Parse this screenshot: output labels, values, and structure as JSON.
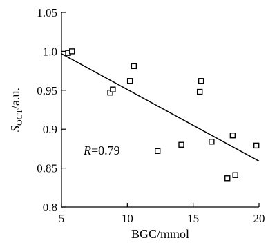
{
  "chart_data": {
    "type": "scatter",
    "xlabel": "BGC/mmol",
    "ylabel": {
      "main": "S",
      "subscript": "OCT",
      "suffix": "/a.u."
    },
    "xlim": [
      5,
      20
    ],
    "ylim": [
      0.8,
      1.05
    ],
    "x_ticks": [
      5,
      10,
      15,
      20
    ],
    "x_tick_labels": [
      "5",
      "10",
      "15",
      "20"
    ],
    "y_ticks": [
      0.8,
      0.85,
      0.9,
      0.95,
      1.0,
      1.05
    ],
    "y_tick_labels": [
      "0.8",
      "0.85",
      "0.9",
      "0.95",
      "1.0",
      "1.05"
    ],
    "grid": false,
    "marker": "open-square",
    "points": [
      {
        "x": 5.5,
        "y": 0.998
      },
      {
        "x": 5.8,
        "y": 1.0
      },
      {
        "x": 8.7,
        "y": 0.947
      },
      {
        "x": 8.9,
        "y": 0.951
      },
      {
        "x": 10.2,
        "y": 0.962
      },
      {
        "x": 10.5,
        "y": 0.981
      },
      {
        "x": 12.3,
        "y": 0.872
      },
      {
        "x": 14.1,
        "y": 0.88
      },
      {
        "x": 15.5,
        "y": 0.948
      },
      {
        "x": 15.6,
        "y": 0.962
      },
      {
        "x": 16.4,
        "y": 0.884
      },
      {
        "x": 17.6,
        "y": 0.837
      },
      {
        "x": 18.0,
        "y": 0.892
      },
      {
        "x": 18.2,
        "y": 0.841
      },
      {
        "x": 19.8,
        "y": 0.879
      }
    ],
    "fit_line": {
      "x": [
        5,
        20
      ],
      "y": [
        0.997,
        0.859
      ]
    },
    "annotation": {
      "italic": "R",
      "text": "=0.79"
    }
  }
}
